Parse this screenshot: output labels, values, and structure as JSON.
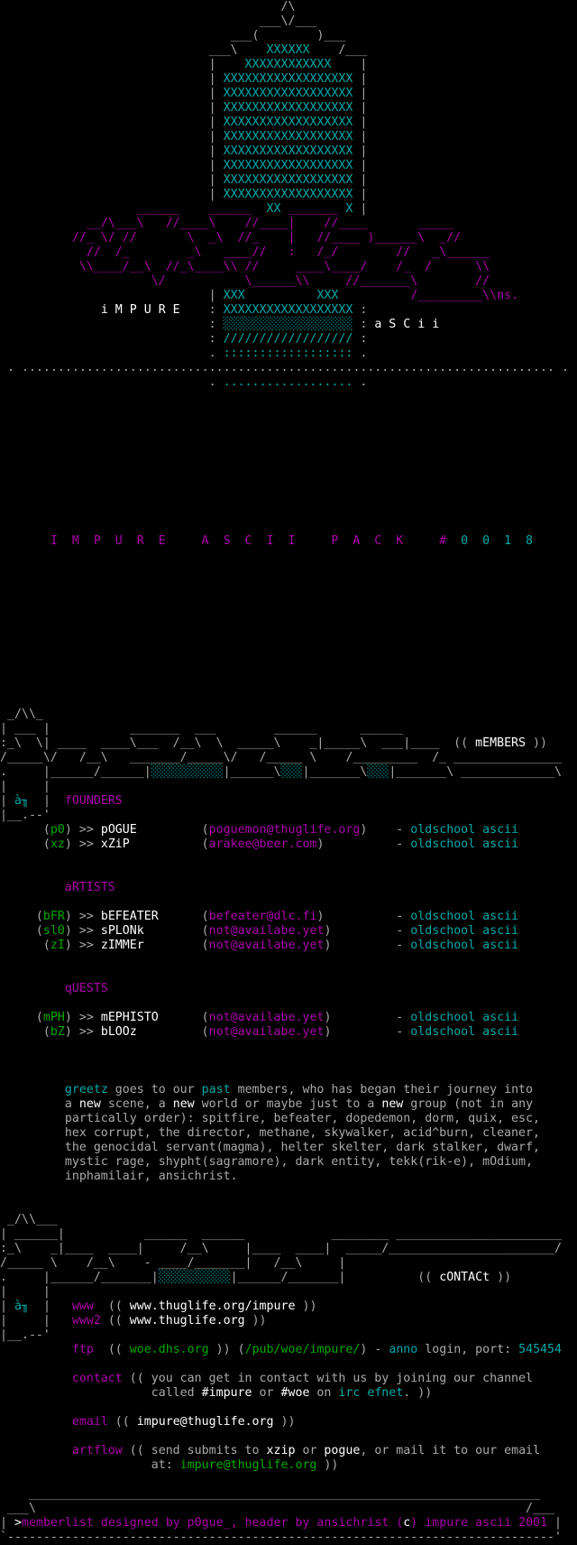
{
  "colors": {
    "g": "#aaaaaa",
    "c": "#00aaaa",
    "m": "#aa00aa",
    "w": "#ffffff",
    "G": "#00aa00"
  },
  "lines": [
    [
      [
        "                                       /\\",
        "g"
      ]
    ],
    [
      [
        "                                    ___\\/___",
        "g"
      ]
    ],
    [
      [
        "                                ___(        )___",
        "g"
      ]
    ],
    [
      [
        "                             ___\\    ",
        "g"
      ],
      [
        "XXXXXX",
        "c"
      ],
      [
        "    /___",
        "g"
      ]
    ],
    [
      [
        "                             |    ",
        "g"
      ],
      [
        "XXXXXXXXXXXX",
        "c"
      ],
      [
        "    |",
        "g"
      ]
    ],
    [
      [
        "                             | ",
        "g"
      ],
      [
        "XXXXXXXXXXXXXXXXXX",
        "c"
      ],
      [
        " |",
        "g"
      ]
    ],
    [
      [
        "                             | ",
        "g"
      ],
      [
        "XXXXXXXXXXXXXXXXXX",
        "c"
      ],
      [
        " |",
        "g"
      ]
    ],
    [
      [
        "                             | ",
        "g"
      ],
      [
        "XXXXXXXXXXXXXXXXXX",
        "c"
      ],
      [
        " |",
        "g"
      ]
    ],
    [
      [
        "                             | ",
        "g"
      ],
      [
        "XXXXXXXXXXXXXXXXXX",
        "c"
      ],
      [
        " |",
        "g"
      ]
    ],
    [
      [
        "                             | ",
        "g"
      ],
      [
        "XXXXXXXXXXXXXXXXXX",
        "c"
      ],
      [
        " |",
        "g"
      ]
    ],
    [
      [
        "                             | ",
        "g"
      ],
      [
        "XXXXXXXXXXXXXXXXXX",
        "c"
      ],
      [
        " |",
        "g"
      ]
    ],
    [
      [
        "                             | ",
        "g"
      ],
      [
        "XXXXXXXXXXXXXXXXXX",
        "c"
      ],
      [
        " |",
        "g"
      ]
    ],
    [
      [
        "                             | ",
        "g"
      ],
      [
        "XXXXXXXXXXXXXXXXXX",
        "c"
      ],
      [
        " |",
        "g"
      ]
    ],
    [
      [
        "                             | ",
        "g"
      ],
      [
        "XXXXXXXXXXXXXXXXXX",
        "c"
      ],
      [
        " |",
        "g"
      ]
    ],
    [
      [
        "                   ______    ______",
        "m"
      ],
      [
        "  ",
        "g"
      ],
      [
        "XX",
        "c"
      ],
      [
        " _______ ",
        "m"
      ],
      [
        "X",
        "c"
      ],
      [
        " |",
        "g"
      ]
    ],
    [
      [
        "            __/\\___\\   //____\\    //____|    //____       _____",
        "m"
      ]
    ],
    [
      [
        "          //_ \\/ //       \\  _\\  //_    |   //____ )______\\  _//",
        "m"
      ]
    ],
    [
      [
        "            //  /_        _\\   ____//   :   /_/        //   _\\______",
        "m"
      ]
    ],
    [
      [
        "           \\\\____/__\\  //_\\____\\\\ //     ____\\____/    /_  /      \\\\",
        "m"
      ]
    ],
    [
      [
        "                     \\/           \\______\\\\     //_______\\        //",
        "m"
      ]
    ],
    [
      [
        "                             | ",
        "g"
      ],
      [
        "XXX",
        "c"
      ],
      [
        "          ",
        "g"
      ],
      [
        "XXX",
        "c"
      ],
      [
        "          ",
        "g"
      ],
      [
        "/_________\\\\ns.",
        "m"
      ]
    ],
    [
      [
        "              ",
        "g"
      ],
      [
        "i M P U R E",
        "w"
      ],
      [
        "    : ",
        "g"
      ],
      [
        "XXXXXXXXXXXXXXXXXX",
        "c"
      ],
      [
        " :",
        "g"
      ]
    ],
    [
      [
        "                             : ",
        "g"
      ],
      [
        "░░░░░░░░░░░░░░░░░░",
        "c"
      ],
      [
        " : ",
        "g"
      ],
      [
        "a S C i i",
        "w"
      ]
    ],
    [
      [
        "                             : ",
        "g"
      ],
      [
        "//////////////////",
        "c"
      ],
      [
        " :",
        "g"
      ]
    ],
    [
      [
        "                             . ",
        "g"
      ],
      [
        "::::::::::::::::::",
        "c"
      ],
      [
        " .",
        "g"
      ]
    ],
    [
      [
        " . .......................................................................... .",
        "g"
      ]
    ],
    [
      [
        "                             . ",
        "g"
      ],
      [
        "..................",
        "c"
      ],
      [
        " .",
        "g"
      ]
    ],
    [],
    [],
    [],
    [],
    [],
    [],
    [],
    [],
    [],
    [],
    [
      [
        "       I  M  P  U  R  E     A  S  C  I  I     P  A  C  K     #",
        "m"
      ],
      [
        "  0  0  1  8",
        "c"
      ]
    ],
    [],
    [],
    [],
    [],
    [],
    [],
    [],
    [],
    [],
    [],
    [],
    [
      [
        " _/\\\\_",
        "g"
      ]
    ],
    [
      [
        "| ___ |           _______  ___        ______      ______",
        "g"
      ]
    ],
    [
      [
        ":_\\  \\| ____  ____\\___  /__\\  \\  _____\\    _|_____\\  ___|____  ((",
        "g"
      ],
      [
        " mEMBERS",
        "w"
      ],
      [
        " ))",
        "g"
      ]
    ],
    [
      [
        "/_____\\/   /__\\   _______/_____\\/   /_____ \\    /_________  /_ _______________",
        "g"
      ]
    ],
    [
      [
        ".     |______/______|",
        "g"
      ],
      [
        "░░░░░░░░░░",
        "c"
      ],
      [
        "|______\\",
        "g"
      ],
      [
        "░░░",
        "c"
      ],
      [
        "|_______\\",
        "g"
      ],
      [
        "░░░",
        "c"
      ],
      [
        "|_______\\ _____________\\",
        "g"
      ]
    ],
    [
      [
        "|     |",
        "g"
      ]
    ],
    [
      [
        "| ",
        "g"
      ],
      [
        "à╖",
        "c"
      ],
      [
        "  |  ",
        "g"
      ],
      [
        "fOUNDERS",
        "m"
      ]
    ],
    [
      [
        "|__.--'",
        "g"
      ]
    ],
    [
      [
        "      (",
        "g"
      ],
      [
        "p0",
        "G"
      ],
      [
        ") >> ",
        "g"
      ],
      [
        "pOGUE",
        "w"
      ],
      [
        "         (",
        "g"
      ],
      [
        "poguemon@thuglife.org",
        "m"
      ],
      [
        ")    - ",
        "g"
      ],
      [
        "oldschool ascii",
        "c"
      ]
    ],
    [
      [
        "      (",
        "g"
      ],
      [
        "xz",
        "G"
      ],
      [
        ") >> ",
        "g"
      ],
      [
        "xZiP",
        "w"
      ],
      [
        "          (",
        "g"
      ],
      [
        "arakee@beer.com",
        "m"
      ],
      [
        ")          - ",
        "g"
      ],
      [
        "oldschool ascii",
        "c"
      ]
    ],
    [],
    [],
    [
      [
        "         ",
        "g"
      ],
      [
        "aRTISTS",
        "m"
      ]
    ],
    [],
    [
      [
        "     (",
        "g"
      ],
      [
        "bFR",
        "G"
      ],
      [
        ") >> ",
        "g"
      ],
      [
        "bEFEATER",
        "w"
      ],
      [
        "      (",
        "g"
      ],
      [
        "befeater@dlc.fi",
        "m"
      ],
      [
        ")          - ",
        "g"
      ],
      [
        "oldschool ascii",
        "c"
      ]
    ],
    [
      [
        "     (",
        "g"
      ],
      [
        "sl0",
        "G"
      ],
      [
        ") >> ",
        "g"
      ],
      [
        "sPLONk",
        "w"
      ],
      [
        "        (",
        "g"
      ],
      [
        "not@availabe.yet",
        "m"
      ],
      [
        ")         - ",
        "g"
      ],
      [
        "oldschool ascii",
        "c"
      ]
    ],
    [
      [
        "      (",
        "g"
      ],
      [
        "zI",
        "G"
      ],
      [
        ") >> ",
        "g"
      ],
      [
        "zIMMEr",
        "w"
      ],
      [
        "        (",
        "g"
      ],
      [
        "not@availabe.yet",
        "m"
      ],
      [
        ")         - ",
        "g"
      ],
      [
        "oldschool ascii",
        "c"
      ]
    ],
    [],
    [],
    [
      [
        "         ",
        "g"
      ],
      [
        "qUESTS",
        "m"
      ]
    ],
    [],
    [
      [
        "     (",
        "g"
      ],
      [
        "mPH",
        "G"
      ],
      [
        ") >> ",
        "g"
      ],
      [
        "mEPHISTO",
        "w"
      ],
      [
        "      (",
        "g"
      ],
      [
        "not@availabe.yet",
        "m"
      ],
      [
        ")         - ",
        "g"
      ],
      [
        "oldschool ascii",
        "c"
      ]
    ],
    [
      [
        "      (",
        "g"
      ],
      [
        "bZ",
        "G"
      ],
      [
        ") >> ",
        "g"
      ],
      [
        "bLOOz",
        "w"
      ],
      [
        "         (",
        "g"
      ],
      [
        "not@availabe.yet",
        "m"
      ],
      [
        ")         - ",
        "g"
      ],
      [
        "oldschool ascii",
        "c"
      ]
    ],
    [],
    [],
    [],
    [
      [
        "         ",
        "g"
      ],
      [
        "greetz",
        "c"
      ],
      [
        " goes to our ",
        "g"
      ],
      [
        "past",
        "c"
      ],
      [
        " members, who has began their journey into",
        "g"
      ]
    ],
    [
      [
        "         a ",
        "g"
      ],
      [
        "new",
        "w"
      ],
      [
        " scene, a ",
        "g"
      ],
      [
        "new",
        "w"
      ],
      [
        " world or maybe just to a ",
        "g"
      ],
      [
        "new",
        "w"
      ],
      [
        " group (not in any",
        "g"
      ]
    ],
    [
      [
        "         partically order): spitfire, befeater, dopedemon, dorm, quix, esc,",
        "g"
      ]
    ],
    [
      [
        "         hex corrupt, the director, methane, skywalker, acid^burn, cleaner,",
        "g"
      ]
    ],
    [
      [
        "         the genocidal servant(magma), helter skelter, dark stalker, dwarf,",
        "g"
      ]
    ],
    [
      [
        "         mystic rage, shypht(sagramore), dark entity, tekk(rik-e), mOdium,",
        "g"
      ]
    ],
    [
      [
        "         inphamilair, ansichrist.",
        "g"
      ]
    ],
    [],
    [],
    [
      [
        " _/\\\\___",
        "g"
      ]
    ],
    [
      [
        "| ______|           ______  ______            ________ _______________________",
        "g"
      ]
    ],
    [
      [
        ":_\\    _|____  ____|     /__\\     |____  ____|  _____/_______________________/",
        "g"
      ]
    ],
    [
      [
        "/_____ \\    /__\\    - ____/_______|   /__\\     |",
        "g"
      ]
    ],
    [
      [
        ".     |______/_______|",
        "g"
      ],
      [
        "░░░░░░░░░░",
        "c"
      ],
      [
        "|______/_______|          ((",
        "g"
      ],
      [
        " cONTACt",
        "w"
      ],
      [
        " ))",
        "g"
      ]
    ],
    [
      [
        "|     |",
        "g"
      ]
    ],
    [
      [
        "| ",
        "g"
      ],
      [
        "à╖",
        "c"
      ],
      [
        "  |   ",
        "g"
      ],
      [
        "www",
        "m"
      ],
      [
        "  (( ",
        "g"
      ],
      [
        "www.thuglife.org/impure",
        "w"
      ],
      [
        " ))",
        "g"
      ]
    ],
    [
      [
        "|     |   ",
        "g"
      ],
      [
        "www2",
        "m"
      ],
      [
        " (( ",
        "g"
      ],
      [
        "www.thuglife.org",
        "w"
      ],
      [
        " ))",
        "g"
      ]
    ],
    [
      [
        "|__.--'",
        "g"
      ]
    ],
    [
      [
        "          ",
        "g"
      ],
      [
        "ftp",
        "m"
      ],
      [
        "  (( ",
        "g"
      ],
      [
        "woe.dhs.org",
        "G"
      ],
      [
        " )) (",
        "g"
      ],
      [
        "/pub/woe/impure/",
        "G"
      ],
      [
        ") - ",
        "g"
      ],
      [
        "anno",
        "c"
      ],
      [
        " login, port: ",
        "g"
      ],
      [
        "545454",
        "c"
      ]
    ],
    [],
    [
      [
        "          ",
        "g"
      ],
      [
        "contact",
        "m"
      ],
      [
        " (( you can get in contact with us by joining our channel",
        "g"
      ]
    ],
    [
      [
        "                     called ",
        "g"
      ],
      [
        "#impure",
        "w"
      ],
      [
        " or ",
        "g"
      ],
      [
        "#woe",
        "w"
      ],
      [
        " on ",
        "g"
      ],
      [
        "irc efnet",
        "c"
      ],
      [
        ". ))",
        "g"
      ]
    ],
    [],
    [
      [
        "          ",
        "g"
      ],
      [
        "email",
        "m"
      ],
      [
        " (( ",
        "g"
      ],
      [
        "impure@thuglife.org",
        "w"
      ],
      [
        " ))",
        "g"
      ]
    ],
    [],
    [
      [
        "          ",
        "g"
      ],
      [
        "artflow",
        "m"
      ],
      [
        " (( send submits to ",
        "g"
      ],
      [
        "xzip",
        "w"
      ],
      [
        " or ",
        "g"
      ],
      [
        "pogue",
        "w"
      ],
      [
        ", or mail it to our email",
        "g"
      ]
    ],
    [
      [
        "                     at: ",
        "g"
      ],
      [
        "impure@thuglife.org",
        "G"
      ],
      [
        " ))",
        "g"
      ]
    ],
    [],
    [
      [
        "    _______________________________________________________________________",
        "g"
      ]
    ],
    [
      [
        " ___\\                                                                    /___",
        "g"
      ]
    ],
    [
      [
        "| ",
        "g"
      ],
      [
        ">",
        "w"
      ],
      [
        "memberlist designed by p0gue_, header by ansichrist (",
        "m"
      ],
      [
        "c",
        "w"
      ],
      [
        ") impure ascii 2001",
        "m"
      ],
      [
        " |",
        "g"
      ]
    ],
    [
      [
        "`----------------------------------------------------------------------------'",
        "g"
      ]
    ]
  ]
}
